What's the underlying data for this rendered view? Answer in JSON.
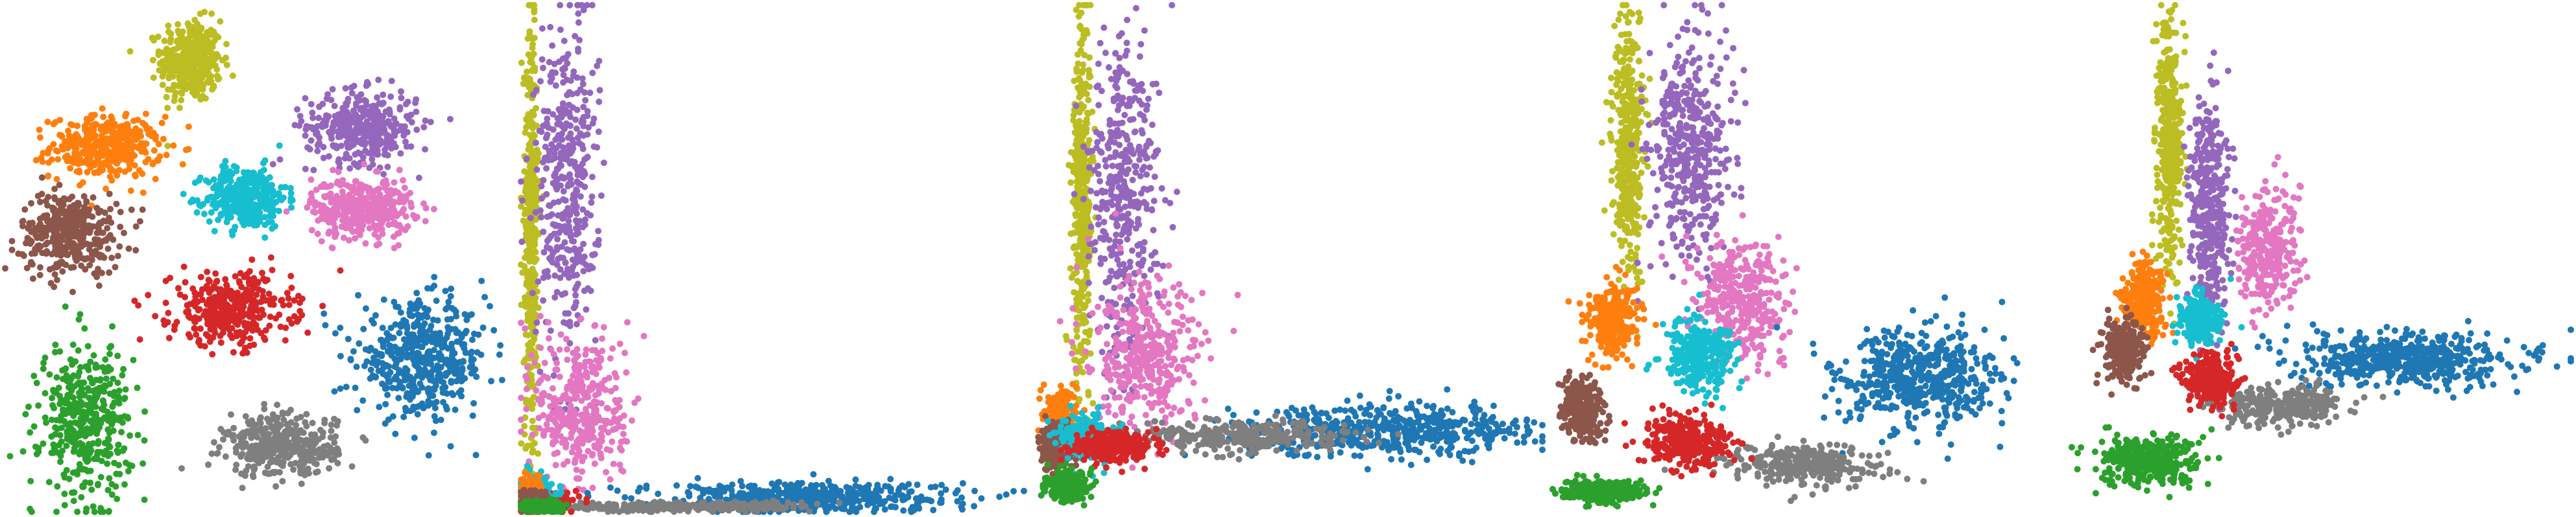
{
  "figure": {
    "panel_count": 5,
    "background": "#ffffff",
    "axes_visible": false,
    "grid": false,
    "legend": "none"
  },
  "palette": {
    "c0": "#1f77b4",
    "c1": "#ff7f0e",
    "c2": "#2ca02c",
    "c3": "#d62728",
    "c4": "#9467bd",
    "c5": "#8c564b",
    "c6": "#e377c2",
    "c7": "#7f7f7f",
    "c8": "#bcbd22",
    "c9": "#17becf"
  },
  "chart_data": [
    {
      "type": "scatter",
      "panel": 1,
      "xlim": [
        0,
        100
      ],
      "ylim": [
        0,
        100
      ],
      "series": [
        {
          "color_key": "c8",
          "center": [
            37,
            89
          ],
          "spread": [
            6,
            8
          ],
          "n": 380
        },
        {
          "color_key": "c1",
          "center": [
            20,
            72
          ],
          "spread": [
            11,
            6
          ],
          "n": 380
        },
        {
          "color_key": "c9",
          "center": [
            48,
            62
          ],
          "spread": [
            8,
            6
          ],
          "n": 380
        },
        {
          "color_key": "c4",
          "center": [
            71,
            76
          ],
          "spread": [
            11,
            7
          ],
          "n": 380
        },
        {
          "color_key": "c6",
          "center": [
            71,
            60
          ],
          "spread": [
            10,
            6
          ],
          "n": 380
        },
        {
          "color_key": "c5",
          "center": [
            13,
            55
          ],
          "spread": [
            10,
            8
          ],
          "n": 380
        },
        {
          "color_key": "c3",
          "center": [
            45,
            40
          ],
          "spread": [
            12,
            7
          ],
          "n": 380
        },
        {
          "color_key": "c0",
          "center": [
            83,
            30
          ],
          "spread": [
            13,
            11
          ],
          "n": 480
        },
        {
          "color_key": "c2",
          "center": [
            16,
            18
          ],
          "spread": [
            9,
            15
          ],
          "n": 420
        },
        {
          "color_key": "c7",
          "center": [
            55,
            13
          ],
          "spread": [
            11,
            6
          ],
          "n": 380
        }
      ]
    },
    {
      "type": "scatter",
      "panel": 2,
      "xlim": [
        0,
        100
      ],
      "ylim": [
        0,
        100
      ],
      "series": [
        {
          "color_key": "c8",
          "center": [
            2,
            55
          ],
          "spread": [
            1.5,
            42
          ],
          "n": 420
        },
        {
          "color_key": "c4",
          "center": [
            9,
            65
          ],
          "spread": [
            6,
            32
          ],
          "n": 420
        },
        {
          "color_key": "c6",
          "center": [
            12,
            20
          ],
          "spread": [
            9,
            16
          ],
          "n": 380
        },
        {
          "color_key": "c0",
          "center": [
            55,
            3
          ],
          "spread": [
            30,
            3
          ],
          "n": 480
        },
        {
          "color_key": "c7",
          "center": [
            30,
            1
          ],
          "spread": [
            28,
            1
          ],
          "n": 300
        },
        {
          "color_key": "c3",
          "center": [
            5,
            2
          ],
          "spread": [
            5,
            2
          ],
          "n": 280
        },
        {
          "color_key": "c9",
          "center": [
            3,
            4
          ],
          "spread": [
            3,
            3
          ],
          "n": 250
        },
        {
          "color_key": "c1",
          "center": [
            2,
            3
          ],
          "spread": [
            2,
            3
          ],
          "n": 250
        },
        {
          "color_key": "c5",
          "center": [
            2,
            2
          ],
          "spread": [
            2,
            2
          ],
          "n": 250
        },
        {
          "color_key": "c2",
          "center": [
            4,
            1
          ],
          "spread": [
            4,
            1
          ],
          "n": 250
        }
      ]
    },
    {
      "type": "scatter",
      "panel": 3,
      "xlim": [
        0,
        100
      ],
      "ylim": [
        0,
        100
      ],
      "series": [
        {
          "color_key": "c8",
          "center": [
            9,
            62
          ],
          "spread": [
            2,
            35
          ],
          "n": 420
        },
        {
          "color_key": "c4",
          "center": [
            17,
            62
          ],
          "spread": [
            7,
            32
          ],
          "n": 420
        },
        {
          "color_key": "c6",
          "center": [
            22,
            30
          ],
          "spread": [
            11,
            15
          ],
          "n": 380
        },
        {
          "color_key": "c0",
          "center": [
            70,
            16
          ],
          "spread": [
            28,
            5
          ],
          "n": 520
        },
        {
          "color_key": "c7",
          "center": [
            40,
            15
          ],
          "spread": [
            22,
            3
          ],
          "n": 320
        },
        {
          "color_key": "c1",
          "center": [
            5,
            18
          ],
          "spread": [
            3,
            6
          ],
          "n": 280
        },
        {
          "color_key": "c5",
          "center": [
            4,
            13
          ],
          "spread": [
            3,
            4
          ],
          "n": 280
        },
        {
          "color_key": "c9",
          "center": [
            10,
            15
          ],
          "spread": [
            5,
            4
          ],
          "n": 250
        },
        {
          "color_key": "c3",
          "center": [
            15,
            13
          ],
          "spread": [
            8,
            3
          ],
          "n": 280
        },
        {
          "color_key": "c2",
          "center": [
            6,
            5
          ],
          "spread": [
            4,
            3
          ],
          "n": 260
        }
      ]
    },
    {
      "type": "scatter",
      "panel": 4,
      "xlim": [
        0,
        100
      ],
      "ylim": [
        0,
        100
      ],
      "series": [
        {
          "color_key": "c8",
          "center": [
            15,
            72
          ],
          "spread": [
            3,
            24
          ],
          "n": 400
        },
        {
          "color_key": "c4",
          "center": [
            27,
            72
          ],
          "spread": [
            8,
            22
          ],
          "n": 420
        },
        {
          "color_key": "c6",
          "center": [
            38,
            42
          ],
          "spread": [
            9,
            12
          ],
          "n": 360
        },
        {
          "color_key": "c0",
          "center": [
            72,
            26
          ],
          "spread": [
            16,
            10
          ],
          "n": 520
        },
        {
          "color_key": "c7",
          "center": [
            50,
            9
          ],
          "spread": [
            15,
            4
          ],
          "n": 320
        },
        {
          "color_key": "c1",
          "center": [
            12,
            38
          ],
          "spread": [
            5,
            7
          ],
          "n": 300
        },
        {
          "color_key": "c9",
          "center": [
            29,
            31
          ],
          "spread": [
            7,
            7
          ],
          "n": 320
        },
        {
          "color_key": "c5",
          "center": [
            6,
            20
          ],
          "spread": [
            4,
            6
          ],
          "n": 280
        },
        {
          "color_key": "c3",
          "center": [
            27,
            14
          ],
          "spread": [
            9,
            5
          ],
          "n": 320
        },
        {
          "color_key": "c2",
          "center": [
            10,
            4
          ],
          "spread": [
            8,
            2
          ],
          "n": 300
        }
      ]
    },
    {
      "type": "scatter",
      "panel": 5,
      "xlim": [
        0,
        100
      ],
      "ylim": [
        0,
        100
      ],
      "series": [
        {
          "color_key": "c8",
          "center": [
            20,
            72
          ],
          "spread": [
            2.5,
            26
          ],
          "n": 400
        },
        {
          "color_key": "c4",
          "center": [
            28,
            60
          ],
          "spread": [
            4,
            22
          ],
          "n": 380
        },
        {
          "color_key": "c6",
          "center": [
            40,
            52
          ],
          "spread": [
            6,
            12
          ],
          "n": 300
        },
        {
          "color_key": "c0",
          "center": [
            68,
            30
          ],
          "spread": [
            23,
            5
          ],
          "n": 520
        },
        {
          "color_key": "c7",
          "center": [
            42,
            21
          ],
          "spread": [
            12,
            4
          ],
          "n": 320
        },
        {
          "color_key": "c1",
          "center": [
            15,
            42
          ],
          "spread": [
            4,
            7
          ],
          "n": 300
        },
        {
          "color_key": "c9",
          "center": [
            26,
            38
          ],
          "spread": [
            4,
            5
          ],
          "n": 260
        },
        {
          "color_key": "c5",
          "center": [
            11,
            32
          ],
          "spread": [
            4,
            6
          ],
          "n": 300
        },
        {
          "color_key": "c3",
          "center": [
            28,
            26
          ],
          "spread": [
            5,
            5
          ],
          "n": 320
        },
        {
          "color_key": "c2",
          "center": [
            16,
            10
          ],
          "spread": [
            10,
            5
          ],
          "n": 360
        }
      ]
    }
  ]
}
